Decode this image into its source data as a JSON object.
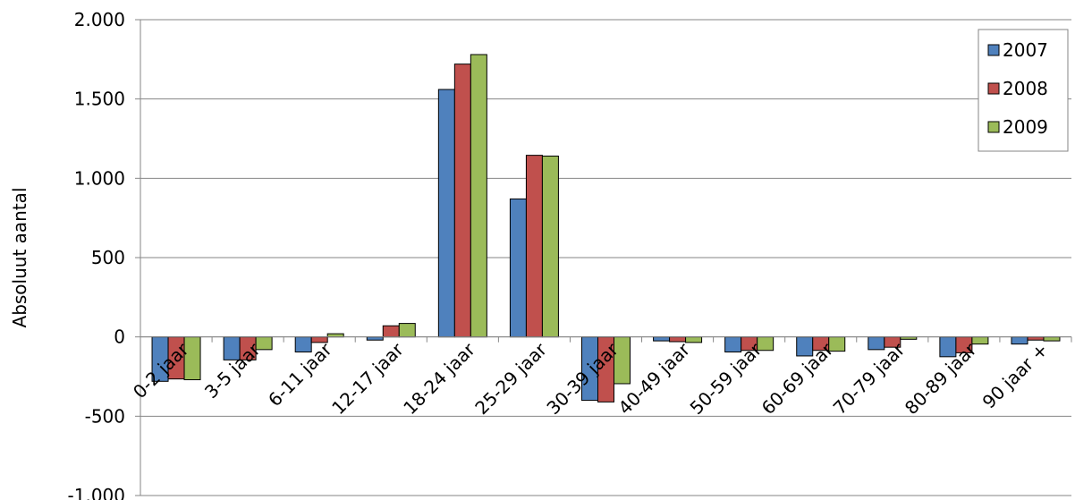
{
  "chart_data": {
    "type": "bar",
    "title": "",
    "xlabel": "",
    "ylabel": "Absoluut aantal",
    "ylim": [
      -1000,
      2000
    ],
    "yticks": [
      -1000,
      -500,
      0,
      500,
      1000,
      1500,
      2000
    ],
    "ytick_labels": [
      "-1.000",
      "-500",
      "0",
      "500",
      "1.000",
      "1.500",
      "2.000"
    ],
    "grid": true,
    "legend_position": "top-right",
    "categories": [
      "0-2 jaar",
      "3-5 jaar",
      "6-11 jaar",
      "12-17 jaar",
      "18-24 jaar",
      "25-29 jaar",
      "30-39 jaar",
      "40-49 jaar",
      "50-59 jaar",
      "60-69 jaar",
      "70-79 jaar",
      "80-89 jaar",
      "90 jaar +"
    ],
    "series": [
      {
        "name": "2007",
        "color": "#4F81BD",
        "values": [
          -280,
          -145,
          -95,
          -20,
          1560,
          870,
          -400,
          -25,
          -95,
          -120,
          -80,
          -125,
          -45
        ]
      },
      {
        "name": "2008",
        "color": "#C0504D",
        "values": [
          -265,
          -145,
          -35,
          70,
          1720,
          1145,
          -410,
          -30,
          -85,
          -85,
          -65,
          -100,
          -20
        ]
      },
      {
        "name": "2009",
        "color": "#9BBB59",
        "values": [
          -270,
          -80,
          20,
          85,
          1780,
          1140,
          -295,
          -35,
          -85,
          -90,
          -15,
          -45,
          -25
        ]
      }
    ]
  }
}
